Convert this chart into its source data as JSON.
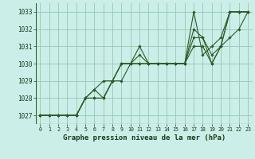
{
  "xlabel": "Graphe pression niveau de la mer (hPa)",
  "xlim": [
    -0.5,
    23.5
  ],
  "ylim": [
    1026.5,
    1033.5
  ],
  "yticks": [
    1027,
    1028,
    1029,
    1030,
    1031,
    1032,
    1033
  ],
  "xticks": [
    0,
    1,
    2,
    3,
    4,
    5,
    6,
    7,
    8,
    9,
    10,
    11,
    12,
    13,
    14,
    15,
    16,
    17,
    18,
    19,
    20,
    21,
    22,
    23
  ],
  "bg_color": "#cceee8",
  "grid_color": "#99ccbb",
  "line_color": "#2d5a27",
  "series": [
    [
      1027.0,
      1027.0,
      1027.0,
      1027.0,
      1027.0,
      1028.0,
      1028.0,
      1028.0,
      1029.0,
      1030.0,
      1030.0,
      1031.0,
      1030.0,
      1030.0,
      1030.0,
      1030.0,
      1030.0,
      1031.5,
      1031.5,
      1030.0,
      1031.0,
      1033.0,
      1033.0,
      1033.0
    ],
    [
      1027.0,
      1027.0,
      1027.0,
      1027.0,
      1027.0,
      1028.0,
      1028.5,
      1028.0,
      1029.0,
      1030.0,
      1030.0,
      1030.0,
      1030.0,
      1030.0,
      1030.0,
      1030.0,
      1030.0,
      1032.0,
      1031.5,
      1030.5,
      1031.0,
      1033.0,
      1033.0,
      1033.0
    ],
    [
      1027.0,
      1027.0,
      1027.0,
      1027.0,
      1027.0,
      1028.0,
      1028.5,
      1029.0,
      1029.0,
      1030.0,
      1030.0,
      1030.5,
      1030.0,
      1030.0,
      1030.0,
      1030.0,
      1030.0,
      1033.0,
      1030.5,
      1031.0,
      1031.5,
      1033.0,
      1033.0,
      1033.0
    ],
    [
      1027.0,
      1027.0,
      1027.0,
      1027.0,
      1027.0,
      1028.0,
      1028.0,
      1028.0,
      1029.0,
      1029.0,
      1030.0,
      1030.0,
      1030.0,
      1030.0,
      1030.0,
      1030.0,
      1030.0,
      1031.0,
      1031.0,
      1030.0,
      1031.0,
      1031.5,
      1032.0,
      1033.0
    ]
  ]
}
